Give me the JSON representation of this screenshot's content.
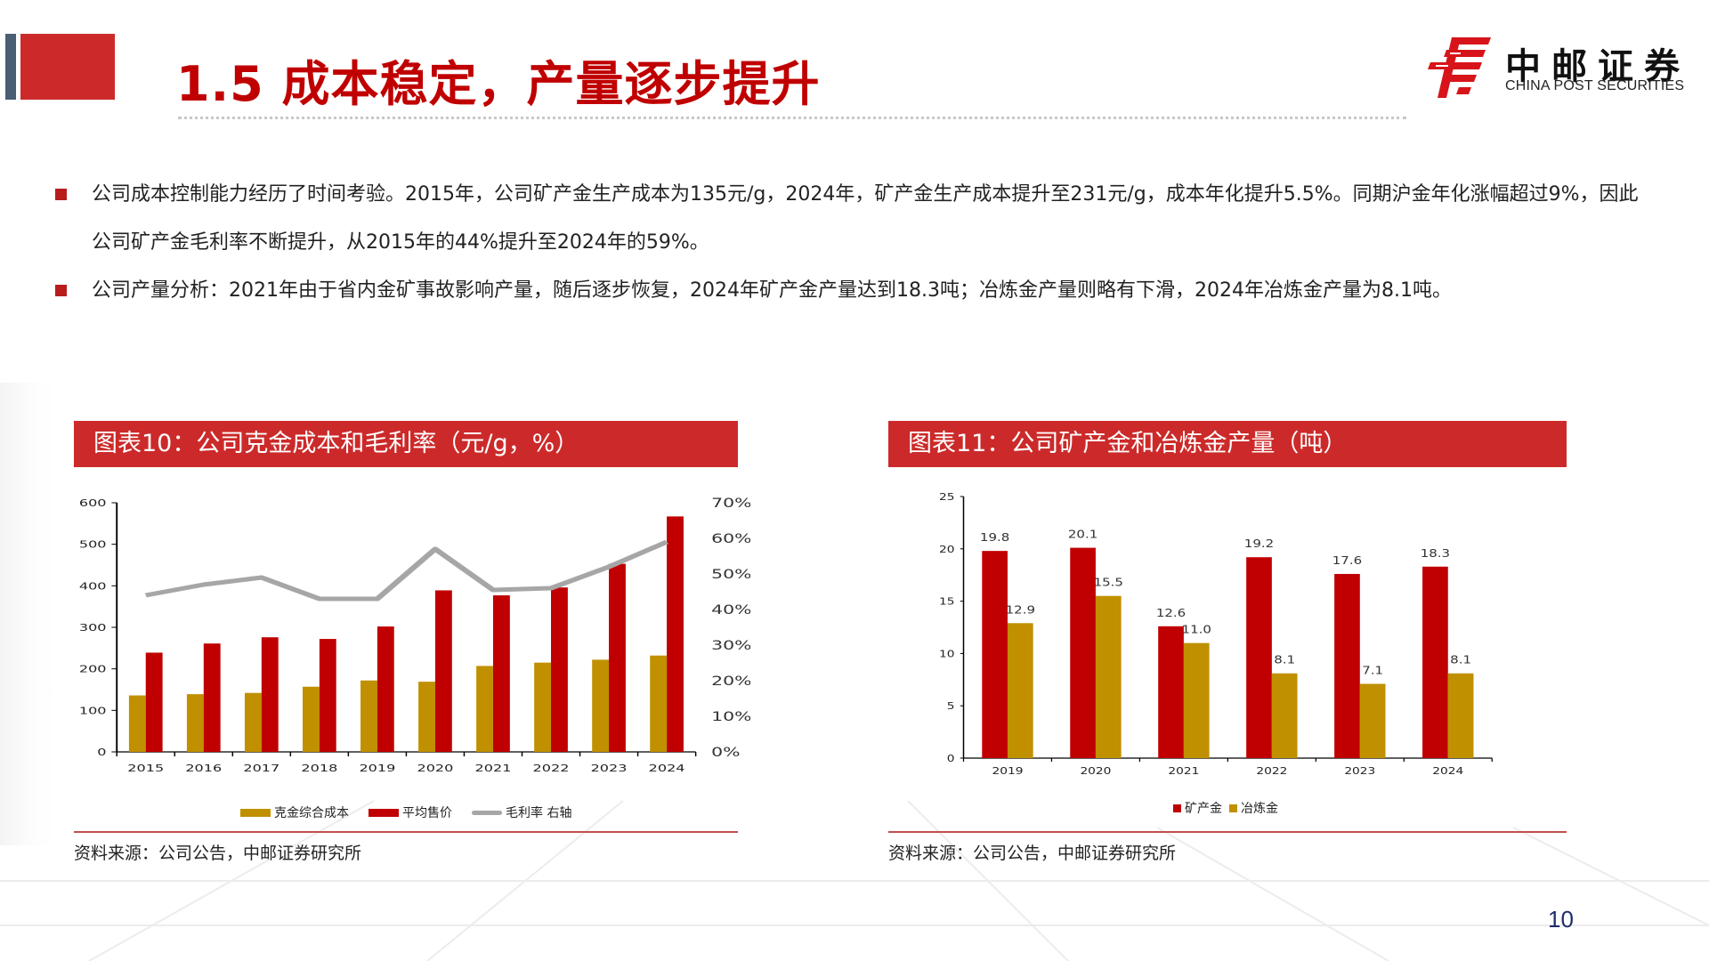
{
  "header": {
    "title": "1.5 成本稳定，产量逐步提升",
    "logo_cn": "中邮证券",
    "logo_en": "CHINA POST SECURITIES"
  },
  "bullets": [
    {
      "text": "公司成本控制能力经历了时间考验。2015年，公司矿产金生产成本为135元/g，2024年，矿产金生产成本提升至231元/g，成本年化提升5.5%。同期沪金年化涨幅超过9%，因此公司矿产金毛利率不断提升，从2015年的44%提升至2024年的59%。"
    },
    {
      "text": "公司产量分析：2021年由于省内金矿事故影响产量，随后逐步恢复，2024年矿产金产量达到18.3吨；冶炼金产量则略有下滑，2024年冶炼金产量为8.1吨。"
    }
  ],
  "charts": {
    "left": {
      "header": "图表10：公司克金成本和毛利率（元/g，%）",
      "legend": [
        "克金综合成本",
        "平均售价",
        "毛利率 右轴"
      ],
      "source": "资料来源：公司公告，中邮证券研究所"
    },
    "right": {
      "header": "图表11：公司矿产金和冶炼金产量（吨）",
      "legend": [
        "矿产金",
        "冶炼金"
      ],
      "source": "资料来源：公司公告，中邮证券研究所"
    }
  },
  "colors": {
    "brand_red": "#cc2a2a",
    "bar_red": "#c00000",
    "bar_gold": "#c09000",
    "line_gray": "#a6a6a6",
    "title_red": "#c00000",
    "page_number": "#1f2d6b"
  },
  "page_number": "10",
  "chart_data": [
    {
      "type": "bar",
      "title": "图表10：公司克金成本和毛利率（元/g，%）",
      "categories": [
        "2015",
        "2016",
        "2017",
        "2018",
        "2019",
        "2020",
        "2021",
        "2022",
        "2023",
        "2024"
      ],
      "series": [
        {
          "name": "克金综合成本",
          "type": "bar",
          "axis": "left",
          "color": "#c09000",
          "values": [
            136,
            139,
            142,
            157,
            172,
            169,
            207,
            215,
            222,
            232
          ]
        },
        {
          "name": "平均售价",
          "type": "bar",
          "axis": "left",
          "color": "#c00000",
          "values": [
            239,
            261,
            276,
            272,
            302,
            389,
            377,
            396,
            453,
            567
          ]
        },
        {
          "name": "毛利率 右轴",
          "type": "line",
          "axis": "right",
          "color": "#a6a6a6",
          "values": [
            44,
            47,
            49,
            43,
            43,
            57,
            45.5,
            46,
            52,
            59
          ]
        }
      ],
      "ylim": [
        0,
        600
      ],
      "yticks": [
        0,
        100,
        200,
        300,
        400,
        500,
        600
      ],
      "y2lim": [
        0,
        70
      ],
      "y2ticks": [
        "0%",
        "10%",
        "20%",
        "30%",
        "40%",
        "50%",
        "60%",
        "70%"
      ],
      "xlabel": "",
      "ylabel": "元/g",
      "y2label": "%",
      "grid": false,
      "legend_position": "bottom"
    },
    {
      "type": "bar",
      "title": "图表11：公司矿产金和冶炼金产量（吨）",
      "categories": [
        "2019",
        "2020",
        "2021",
        "2022",
        "2023",
        "2024"
      ],
      "series": [
        {
          "name": "矿产金",
          "color": "#c00000",
          "values": [
            19.8,
            20.1,
            12.6,
            19.2,
            17.6,
            18.3
          ]
        },
        {
          "name": "冶炼金",
          "color": "#c09000",
          "values": [
            12.9,
            15.5,
            11.0,
            8.1,
            7.1,
            8.1
          ]
        }
      ],
      "ylim": [
        0,
        25
      ],
      "yticks": [
        0,
        5,
        10,
        15,
        20,
        25
      ],
      "xlabel": "",
      "ylabel": "吨",
      "data_labels": true,
      "grid": false,
      "legend_position": "bottom"
    }
  ]
}
